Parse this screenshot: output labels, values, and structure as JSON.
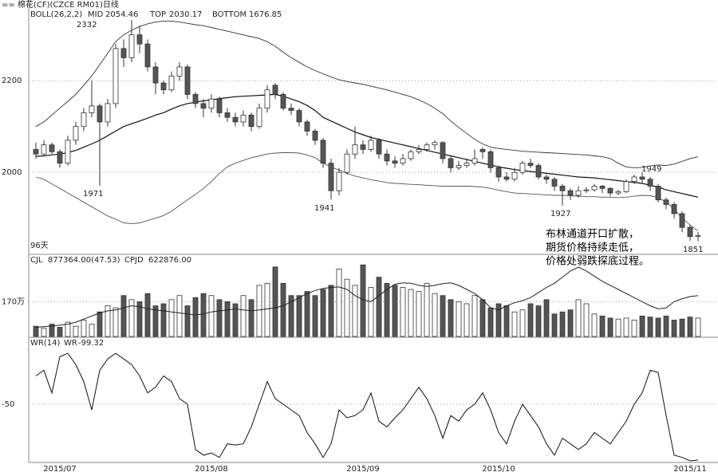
{
  "title": "== 棉花(CF)(CZCE RM01)日线",
  "note": "96天",
  "annotation_text": [
    "布林通道开口扩散，",
    "期货价格持续走低，",
    "价格处弱跌探底过程。"
  ],
  "chart_data": [
    {
      "type": "candlestick",
      "indicator": "BOLL(26,2,2)",
      "categories": [
        null,
        null,
        null,
        "2015/07",
        null,
        null,
        null,
        null,
        null,
        null,
        null,
        null,
        null,
        null,
        null,
        null,
        null,
        null,
        null,
        null,
        null,
        null,
        "2015/08",
        null,
        null,
        null,
        null,
        null,
        null,
        null,
        null,
        null,
        null,
        null,
        null,
        null,
        null,
        null,
        null,
        null,
        null,
        "2015/09",
        null,
        null,
        null,
        null,
        null,
        null,
        null,
        null,
        null,
        null,
        null,
        null,
        null,
        null,
        null,
        null,
        "2015/10",
        null,
        null,
        null,
        null,
        null,
        null,
        null,
        null,
        null,
        null,
        null,
        null,
        null,
        null,
        null,
        null,
        null,
        null,
        null,
        null,
        null,
        null,
        null,
        "2015/11",
        null
      ],
      "open": [
        2050,
        2040,
        2060,
        2045,
        2020,
        2070,
        2100,
        2130,
        2145,
        2110,
        2150,
        2270,
        2250,
        2300,
        2280,
        2230,
        2195,
        2180,
        2210,
        2230,
        2170,
        2150,
        2140,
        2160,
        2130,
        2120,
        2110,
        2125,
        2100,
        2140,
        2190,
        2170,
        2140,
        2135,
        2110,
        2090,
        2070,
        2020,
        1960,
        2000,
        2040,
        2060,
        2050,
        2070,
        2040,
        2025,
        2020,
        2030,
        2045,
        2050,
        2060,
        2065,
        2030,
        2010,
        2015,
        2020,
        2050,
        2045,
        2010,
        1990,
        1985,
        2000,
        2020,
        2015,
        1990,
        1985,
        1970,
        1960,
        1950,
        1960,
        1962,
        1970,
        1965,
        1955,
        1958,
        1980,
        1990,
        1985,
        1970,
        1940,
        1930,
        1910,
        1880,
        1860
      ],
      "high": [
        2065,
        2070,
        2065,
        2050,
        2080,
        2110,
        2140,
        2200,
        2150,
        2160,
        2280,
        2290,
        2332,
        2320,
        2290,
        2240,
        2200,
        2220,
        2240,
        2235,
        2175,
        2160,
        2170,
        2165,
        2140,
        2130,
        2135,
        2130,
        2150,
        2190,
        2195,
        2175,
        2150,
        2140,
        2115,
        2095,
        2075,
        2030,
        2010,
        2050,
        2100,
        2070,
        2080,
        2075,
        2050,
        2035,
        2040,
        2050,
        2060,
        2065,
        2070,
        2068,
        2035,
        2025,
        2030,
        2050,
        2055,
        2050,
        2015,
        2000,
        2010,
        2025,
        2030,
        2020,
        1995,
        1990,
        1975,
        1965,
        1970,
        1968,
        1975,
        1972,
        1968,
        1962,
        1985,
        1995,
        2000,
        1990,
        1975,
        1945,
        1935,
        1915,
        1885,
        1870
      ],
      "low": [
        2030,
        2035,
        2040,
        2010,
        2015,
        2060,
        2090,
        2120,
        1971,
        2100,
        2140,
        2230,
        2240,
        2260,
        2220,
        2170,
        2170,
        2175,
        2200,
        2160,
        2140,
        2120,
        2130,
        2120,
        2110,
        2100,
        2100,
        2090,
        2095,
        2130,
        2160,
        2135,
        2125,
        2100,
        2080,
        2060,
        2010,
        1941,
        1950,
        1995,
        2030,
        2040,
        2045,
        2030,
        2015,
        2010,
        2015,
        2025,
        2040,
        2045,
        2050,
        2020,
        2000,
        2005,
        2010,
        2015,
        2030,
        2000,
        1980,
        1980,
        1980,
        1995,
        2010,
        1985,
        1975,
        1960,
        1927,
        1940,
        1945,
        1955,
        1958,
        1955,
        1948,
        1950,
        1955,
        1975,
        1975,
        1960,
        1935,
        1920,
        1900,
        1870,
        1851,
        1850
      ],
      "close": [
        2040,
        2060,
        2045,
        2020,
        2070,
        2100,
        2130,
        2145,
        2110,
        2150,
        2270,
        2250,
        2300,
        2280,
        2230,
        2195,
        2180,
        2210,
        2230,
        2170,
        2150,
        2140,
        2160,
        2130,
        2120,
        2110,
        2125,
        2100,
        2140,
        2180,
        2170,
        2140,
        2135,
        2110,
        2090,
        2070,
        2020,
        1960,
        2000,
        2040,
        2060,
        2050,
        2070,
        2040,
        2025,
        2020,
        2030,
        2045,
        2050,
        2060,
        2065,
        2030,
        2010,
        2015,
        2020,
        2030,
        2045,
        2010,
        1990,
        1985,
        2000,
        2020,
        2015,
        1990,
        1985,
        1970,
        1960,
        1950,
        1960,
        1962,
        1970,
        1965,
        1955,
        1958,
        1980,
        1990,
        1985,
        1970,
        1940,
        1930,
        1910,
        1880,
        1860,
        1862
      ],
      "series": [
        {
          "name": "MID",
          "readout": "2054.46",
          "color": "#111",
          "values": [
            2035,
            2036,
            2038,
            2040,
            2043,
            2048,
            2055,
            2062,
            2070,
            2080,
            2090,
            2100,
            2106,
            2112,
            2118,
            2125,
            2130,
            2138,
            2145,
            2150,
            2153,
            2156,
            2158,
            2161,
            2163,
            2165,
            2166,
            2167,
            2168,
            2169,
            2170,
            2166,
            2160,
            2154,
            2146,
            2135,
            2120,
            2112,
            2104,
            2096,
            2088,
            2082,
            2076,
            2072,
            2068,
            2064,
            2060,
            2056,
            2052,
            2048,
            2044,
            2040,
            2036,
            2032,
            2028,
            2024,
            2020,
            2016,
            2012,
            2009,
            2006,
            2004,
            2002,
            2000,
            1998,
            1996,
            1994,
            1992,
            1990,
            1989,
            1988,
            1986,
            1984,
            1982,
            1980,
            1978,
            1976,
            1972,
            1968,
            1962,
            1958,
            1954,
            1950,
            1946
          ]
        },
        {
          "name": "TOP",
          "readout": "2030.17",
          "color": "#333",
          "values": [
            2100,
            2110,
            2125,
            2140,
            2155,
            2170,
            2190,
            2210,
            2235,
            2260,
            2285,
            2300,
            2310,
            2318,
            2324,
            2328,
            2330,
            2330,
            2328,
            2325,
            2322,
            2320,
            2316,
            2312,
            2308,
            2304,
            2300,
            2296,
            2292,
            2285,
            2275,
            2262,
            2250,
            2240,
            2230,
            2222,
            2215,
            2208,
            2202,
            2198,
            2195,
            2192,
            2188,
            2184,
            2180,
            2175,
            2170,
            2165,
            2158,
            2150,
            2140,
            2128,
            2112,
            2098,
            2085,
            2072,
            2062,
            2055,
            2052,
            2050,
            2048,
            2046,
            2045,
            2044,
            2043,
            2042,
            2041,
            2040,
            2039,
            2038,
            2036,
            2034,
            2030,
            2020,
            2012,
            2010,
            2011,
            2014,
            2016,
            2015,
            2018,
            2024,
            2030,
            2034
          ]
        },
        {
          "name": "BOTTOM",
          "readout": "1676.85",
          "color": "#555",
          "values": [
            1990,
            1985,
            1975,
            1965,
            1955,
            1945,
            1935,
            1925,
            1915,
            1905,
            1898,
            1890,
            1888,
            1890,
            1895,
            1900,
            1906,
            1915,
            1928,
            1940,
            1952,
            1965,
            1980,
            1998,
            2012,
            2020,
            2026,
            2032,
            2036,
            2040,
            2042,
            2043,
            2043,
            2042,
            2038,
            2032,
            2020,
            2012,
            2005,
            1998,
            1992,
            1988,
            1984,
            1981,
            1978,
            1976,
            1975,
            1974,
            1973,
            1972,
            1971,
            1970,
            1970,
            1970,
            1970,
            1969,
            1968,
            1965,
            1961,
            1958,
            1955,
            1954,
            1953,
            1952,
            1951,
            1950,
            1950,
            1949,
            1948,
            1947,
            1947,
            1946,
            1946,
            1945,
            1946,
            1948,
            1950,
            1949,
            1945,
            1935,
            1920,
            1900,
            1885,
            1872
          ]
        }
      ],
      "annotations": [
        "2332",
        "1971",
        "1941",
        "1927",
        "1949",
        "1851"
      ],
      "ylim": [
        1823,
        2362
      ],
      "yticks": [
        2000,
        2200
      ],
      "grid": true
    },
    {
      "type": "bar",
      "series": [
        {
          "name": "CJL",
          "readout": "877364.00(47.53)",
          "values": [
            50,
            40,
            60,
            45,
            70,
            50,
            80,
            60,
            120,
            150,
            140,
            200,
            180,
            170,
            210,
            150,
            160,
            180,
            200,
            150,
            190,
            210,
            200,
            180,
            170,
            160,
            200,
            180,
            250,
            260,
            340,
            260,
            200,
            200,
            220,
            200,
            230,
            250,
            330,
            280,
            250,
            350,
            240,
            290,
            260,
            250,
            240,
            230,
            220,
            260,
            210,
            200,
            180,
            170,
            160,
            200,
            180,
            140,
            160,
            150,
            120,
            130,
            160,
            150,
            180,
            110,
            120,
            130,
            180,
            160,
            110,
            100,
            90,
            85,
            90,
            80,
            100,
            95,
            90,
            100,
            80,
            85,
            95,
            90
          ]
        },
        {
          "name": "CPJD",
          "readout": "622876.00",
          "color": "#222",
          "values": [
            45,
            48,
            52,
            55,
            60,
            70,
            85,
            100,
            115,
            125,
            130,
            140,
            150,
            145,
            135,
            130,
            125,
            120,
            115,
            110,
            105,
            110,
            120,
            125,
            130,
            135,
            130,
            125,
            130,
            135,
            140,
            150,
            170,
            190,
            210,
            225,
            235,
            240,
            242,
            230,
            200,
            180,
            170,
            200,
            230,
            255,
            262,
            260,
            250,
            245,
            250,
            258,
            262,
            250,
            230,
            210,
            180,
            140,
            130,
            150,
            165,
            175,
            190,
            215,
            240,
            260,
            290,
            320,
            339,
            320,
            295,
            270,
            250,
            230,
            210,
            190,
            170,
            150,
            135,
            140,
            170,
            185,
            195,
            200
          ]
        }
      ],
      "ylim": [
        0,
        390
      ],
      "yticks": [
        {
          "value": 170,
          "label": "170万"
        }
      ],
      "grid": true
    },
    {
      "type": "line",
      "indicator": "WR(14)",
      "series": [
        {
          "name": "WR",
          "readout": "-99.32",
          "color": "#111",
          "values": [
            -25,
            -20,
            -40,
            -8,
            -5,
            -15,
            -30,
            -55,
            -20,
            -10,
            -5,
            -10,
            -15,
            -25,
            -40,
            -35,
            -25,
            -30,
            -45,
            -50,
            -90,
            -95,
            -93,
            -97,
            -85,
            -86,
            -85,
            -70,
            -50,
            -30,
            -45,
            -50,
            -55,
            -60,
            -75,
            -85,
            -97,
            -85,
            -55,
            -62,
            -60,
            -55,
            -40,
            -65,
            -70,
            -62,
            -55,
            -45,
            -35,
            -45,
            -60,
            -80,
            -60,
            -65,
            -55,
            -50,
            -40,
            -55,
            -75,
            -85,
            -65,
            -50,
            -60,
            -70,
            -85,
            -95,
            -80,
            -85,
            -90,
            -85,
            -75,
            -80,
            -85,
            -75,
            -65,
            -50,
            -40,
            -20,
            -22,
            -60,
            -95,
            -97,
            -100,
            -99.32
          ]
        }
      ],
      "ylim": [
        -100,
        0
      ],
      "yticks": [
        -50
      ],
      "grid": true
    }
  ]
}
